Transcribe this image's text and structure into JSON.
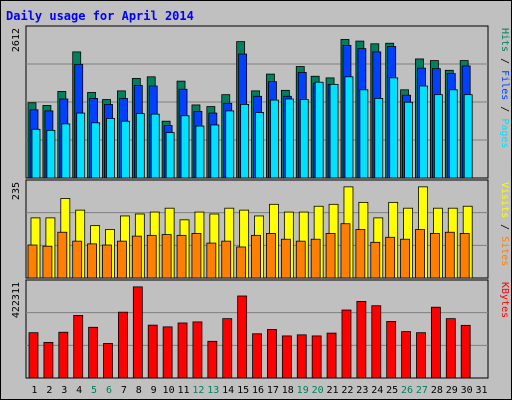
{
  "colors": {
    "background": "#c0c0c0",
    "title": "#0000ff",
    "hits": "#00805c",
    "files": "#0040ff",
    "pages": "#00e0ff",
    "visits": "#ffff00",
    "sites": "#ff8000",
    "kbytes": "#ff0000",
    "weekend_day": "#00805c",
    "weekday": "#000000"
  },
  "chart_data": {
    "type": "bar",
    "title": "Daily usage for April 2014",
    "categories": [
      "1",
      "2",
      "3",
      "4",
      "5",
      "6",
      "7",
      "8",
      "9",
      "10",
      "11",
      "12",
      "13",
      "14",
      "15",
      "16",
      "17",
      "18",
      "19",
      "20",
      "21",
      "22",
      "23",
      "24",
      "25",
      "26",
      "27",
      "28",
      "29",
      "30",
      "31"
    ],
    "weekend_days": [
      "5",
      "6",
      "12",
      "13",
      "19",
      "20",
      "26",
      "27"
    ],
    "panels": [
      {
        "ymax": 2612,
        "ymax_label": "2612",
        "legend": [
          {
            "text": "Pages",
            "color": "#00e0ff"
          },
          {
            "text": " / ",
            "color": "#000000"
          },
          {
            "text": "Files",
            "color": "#0040ff"
          },
          {
            "text": " / ",
            "color": "#000000"
          },
          {
            "text": "Hits",
            "color": "#00805c"
          }
        ],
        "series": [
          {
            "name": "Hits",
            "values": [
              1390,
              1340,
              1600,
              2330,
              1580,
              1450,
              1610,
              1840,
              1870,
              1050,
              1790,
              1350,
              1320,
              1540,
              2520,
              1610,
              1920,
              1620,
              2060,
              1880,
              1850,
              2560,
              2530,
              2480,
              2490,
              1630,
              2200,
              2170,
              1990,
              2170,
              0
            ]
          },
          {
            "name": "Files",
            "values": [
              1260,
              1240,
              1460,
              2100,
              1470,
              1360,
              1470,
              1710,
              1700,
              970,
              1640,
              1230,
              1200,
              1380,
              2290,
              1510,
              1780,
              1510,
              1950,
              1750,
              1730,
              2450,
              2390,
              2330,
              2430,
              1530,
              2030,
              2020,
              1930,
              2070,
              0
            ]
          },
          {
            "name": "Pages",
            "values": [
              900,
              880,
              1000,
              1200,
              1020,
              1100,
              1050,
              1190,
              1180,
              840,
              1150,
              960,
              980,
              1240,
              1360,
              1210,
              1440,
              1460,
              1450,
              1770,
              1730,
              1870,
              1630,
              1470,
              1850,
              1400,
              1700,
              1540,
              1630,
              1540,
              0
            ]
          }
        ]
      },
      {
        "ymax": 235,
        "ymax_label": "235",
        "legend": [
          {
            "text": "Sites",
            "color": "#ff8000"
          },
          {
            "text": " / ",
            "color": "#000000"
          },
          {
            "text": "Visits",
            "color": "#ffff00"
          }
        ],
        "series": [
          {
            "name": "Visits",
            "values": [
              155,
              155,
              205,
              175,
              135,
              125,
              160,
              165,
              170,
              180,
              150,
              170,
              165,
              180,
              175,
              160,
              190,
              170,
              170,
              185,
              190,
              235,
              195,
              155,
              195,
              180,
              235,
              180,
              180,
              185,
              0
            ]
          },
          {
            "name": "Sites",
            "values": [
              85,
              82,
              118,
              95,
              88,
              85,
              95,
              108,
              110,
              112,
              110,
              115,
              90,
              95,
              80,
              110,
              115,
              100,
              95,
              100,
              115,
              140,
              125,
              92,
              105,
              100,
              125,
              115,
              118,
              115,
              0
            ]
          }
        ]
      },
      {
        "ymax": 422311,
        "ymax_label": "422311",
        "legend": [
          {
            "text": "KBytes",
            "color": "#ff0000"
          }
        ],
        "series": [
          {
            "name": "KBytes",
            "values": [
              210000,
              165000,
              212000,
              290000,
              235000,
              160000,
              305000,
              422311,
              245000,
              237000,
              255000,
              260000,
              170000,
              275000,
              380000,
              205000,
              225000,
              195000,
              200000,
              195000,
              208000,
              315000,
              355000,
              335000,
              262000,
              215000,
              210000,
              328000,
              275000,
              244000,
              0
            ]
          }
        ]
      }
    ]
  }
}
